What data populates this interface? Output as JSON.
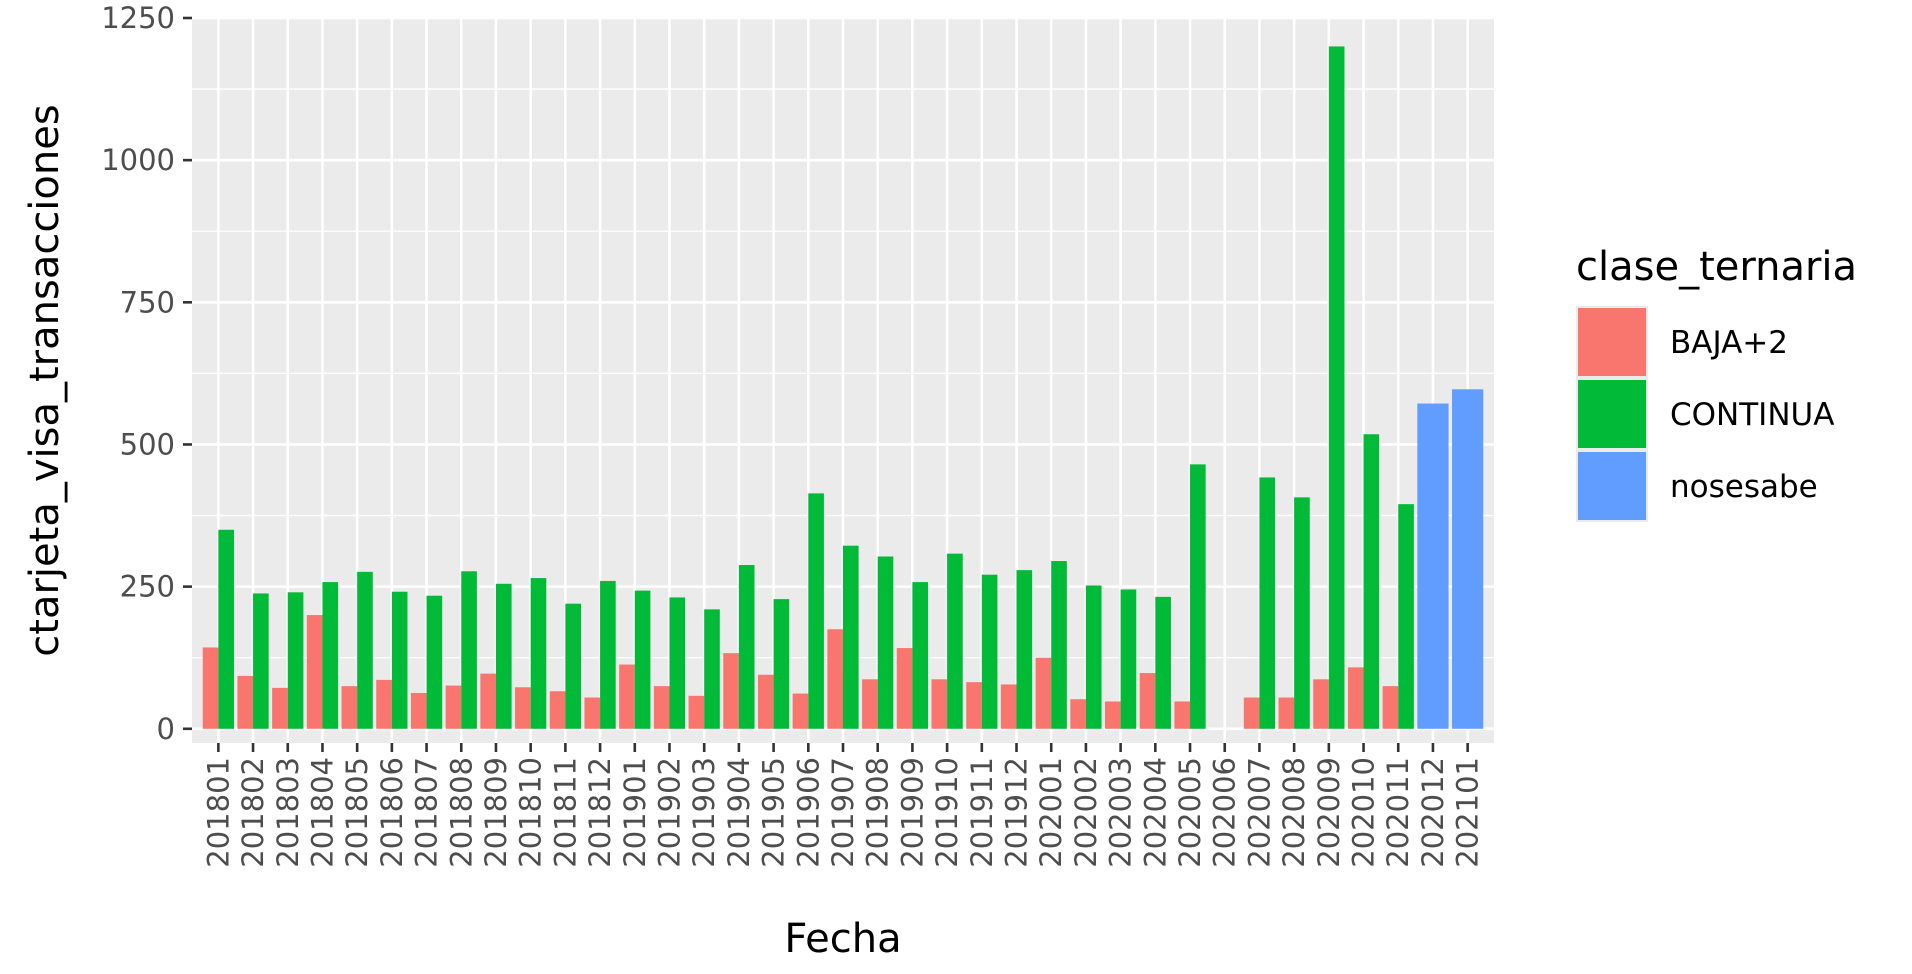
{
  "chart_data": {
    "type": "bar",
    "xlabel": "Fecha",
    "ylabel": "ctarjeta_visa_transacciones",
    "ylim": [
      -25,
      1250
    ],
    "yticks": [
      0,
      250,
      500,
      750,
      1000,
      1250
    ],
    "grid": true,
    "legend_position": "right",
    "legend_title": "clase_ternaria",
    "colors": {
      "BAJA+2": "#F8766D",
      "CONTINUA": "#00BA38",
      "nosesabe": "#619CFF"
    },
    "categories": [
      "201801",
      "201802",
      "201803",
      "201804",
      "201805",
      "201806",
      "201807",
      "201808",
      "201809",
      "201810",
      "201811",
      "201812",
      "201901",
      "201902",
      "201903",
      "201904",
      "201905",
      "201906",
      "201907",
      "201908",
      "201909",
      "201910",
      "201911",
      "201912",
      "202001",
      "202002",
      "202003",
      "202004",
      "202005",
      "202006",
      "202007",
      "202008",
      "202009",
      "202010",
      "202011",
      "202012",
      "202101"
    ],
    "series": [
      {
        "name": "BAJA+2",
        "values": [
          143,
          93,
          72,
          200,
          75,
          86,
          63,
          76,
          97,
          73,
          66,
          55,
          113,
          75,
          58,
          133,
          95,
          62,
          175,
          87,
          142,
          87,
          82,
          78,
          125,
          52,
          48,
          98,
          48,
          null,
          55,
          55,
          87,
          108,
          75,
          null,
          null
        ]
      },
      {
        "name": "CONTINUA",
        "values": [
          350,
          238,
          240,
          258,
          276,
          241,
          234,
          277,
          255,
          265,
          220,
          260,
          243,
          231,
          210,
          288,
          228,
          414,
          322,
          303,
          258,
          308,
          271,
          279,
          295,
          252,
          245,
          232,
          465,
          null,
          442,
          407,
          1200,
          518,
          395,
          null,
          null
        ]
      },
      {
        "name": "nosesabe",
        "values": [
          null,
          null,
          null,
          null,
          null,
          null,
          null,
          null,
          null,
          null,
          null,
          null,
          null,
          null,
          null,
          null,
          null,
          null,
          null,
          null,
          null,
          null,
          null,
          null,
          null,
          null,
          null,
          null,
          null,
          null,
          null,
          null,
          null,
          null,
          null,
          572,
          597
        ]
      }
    ]
  }
}
